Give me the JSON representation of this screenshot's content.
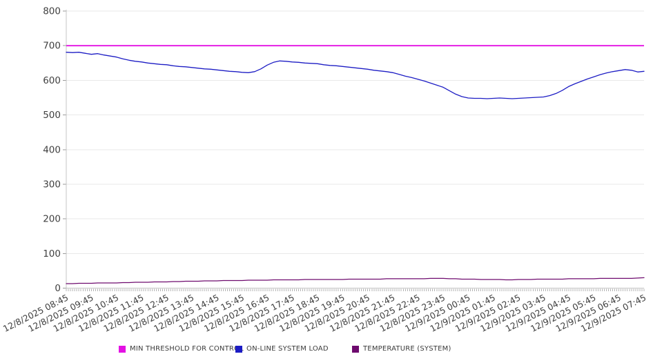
{
  "chart_data": {
    "type": "line",
    "title": "",
    "xlabel": "",
    "ylabel": "",
    "ylim": [
      0,
      800
    ],
    "y_ticks": [
      0,
      100,
      200,
      300,
      400,
      500,
      600,
      700,
      800
    ],
    "grid": "horizontal",
    "legend_position": "bottom",
    "axis_text_color": "#3f3f3f",
    "grid_color": "#e9e9e9",
    "axis_line_color": "#c4c4c4",
    "minor_tick_color": "#b3b3b3",
    "x_labels": [
      "12/8/2025 08:45",
      "12/8/2025 09:45",
      "12/8/2025 10:45",
      "12/8/2025 11:45",
      "12/8/2025 12:45",
      "12/8/2025 13:45",
      "12/8/2025 14:45",
      "12/8/2025 15:45",
      "12/8/2025 16:45",
      "12/8/2025 17:45",
      "12/8/2025 18:45",
      "12/8/2025 19:45",
      "12/8/2025 20:45",
      "12/8/2025 21:45",
      "12/8/2025 22:45",
      "12/8/2025 23:45",
      "12/9/2025 00:45",
      "12/9/2025 01:45",
      "12/9/2025 02:45",
      "12/9/2025 03:45",
      "12/9/2025 04:45",
      "12/9/2025 05:45",
      "12/9/2025 06:45",
      "12/9/2025 07:45"
    ],
    "samples_per_label_interval": 4,
    "minor_ticks_per_label_interval": 12,
    "series": [
      {
        "name": "MIN THRESHOLD FOR CONTROL",
        "color": "#e311e3",
        "style": "threshold",
        "line_width": 1.8,
        "value": 700
      },
      {
        "name": "ON-LINE SYSTEM LOAD",
        "color": "#1c1cc4",
        "style": "line",
        "line_width": 1.3,
        "values": [
          681,
          680,
          681,
          678,
          675,
          677,
          673,
          670,
          667,
          662,
          658,
          655,
          653,
          650,
          648,
          646,
          645,
          642,
          640,
          639,
          637,
          635,
          633,
          632,
          630,
          628,
          626,
          625,
          623,
          622,
          625,
          633,
          644,
          652,
          656,
          655,
          653,
          652,
          650,
          649,
          648,
          645,
          643,
          642,
          640,
          638,
          636,
          634,
          632,
          629,
          627,
          625,
          622,
          617,
          612,
          608,
          603,
          598,
          592,
          586,
          580,
          570,
          560,
          553,
          549,
          548,
          548,
          547,
          548,
          549,
          548,
          547,
          548,
          549,
          550,
          551,
          552,
          556,
          562,
          571,
          582,
          590,
          597,
          604,
          610,
          616,
          621,
          625,
          628,
          631,
          629,
          624,
          626
        ]
      },
      {
        "name": "TEMPERATURE (SYSTEM)",
        "color": "#6e0a6e",
        "style": "line",
        "line_width": 1.3,
        "values": [
          13,
          13,
          14,
          14,
          14,
          15,
          15,
          15,
          15,
          16,
          16,
          17,
          17,
          17,
          18,
          18,
          18,
          19,
          19,
          20,
          20,
          20,
          21,
          21,
          21,
          22,
          22,
          22,
          22,
          23,
          23,
          23,
          23,
          24,
          24,
          24,
          24,
          24,
          25,
          25,
          25,
          25,
          25,
          25,
          25,
          26,
          26,
          26,
          26,
          26,
          26,
          27,
          27,
          27,
          27,
          27,
          27,
          27,
          28,
          28,
          28,
          27,
          27,
          26,
          26,
          26,
          25,
          25,
          25,
          25,
          24,
          24,
          25,
          25,
          25,
          26,
          26,
          26,
          26,
          26,
          27,
          27,
          27,
          27,
          27,
          28,
          28,
          28,
          28,
          28,
          28,
          29,
          30
        ]
      }
    ]
  }
}
